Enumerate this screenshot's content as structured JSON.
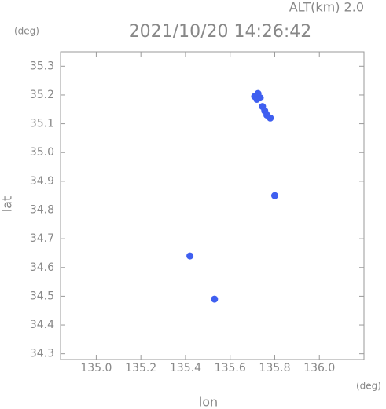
{
  "chart_data": {
    "type": "scatter",
    "title": "2021/10/20 14:26:42",
    "subtitle": "ALT(km) 2.0",
    "x_unit": "(deg)",
    "y_unit": "(deg)",
    "x_label": "lon",
    "y_label": "lat",
    "series": [
      {
        "color": "#3f5ff0",
        "x": [
          135.71,
          135.725,
          135.735,
          135.72,
          135.745,
          135.755,
          135.765,
          135.78,
          135.8,
          135.42,
          135.53
        ],
        "values": [
          35.195,
          35.205,
          35.19,
          35.185,
          35.16,
          35.145,
          35.13,
          35.12,
          34.85,
          34.64,
          34.49
        ]
      }
    ],
    "xlim": [
      134.84,
      136.2
    ],
    "ylim": [
      34.28,
      35.35
    ],
    "xticks": [
      {
        "value": 135.0,
        "label": "135.0"
      },
      135.2,
      135.4,
      135.6,
      135.8,
      {
        "value": 136.0,
        "label": "136.0"
      }
    ],
    "yticks": [
      34.3,
      34.4,
      34.5,
      34.6,
      34.7,
      34.8,
      34.9,
      {
        "value": 35.0,
        "label": "35.0"
      },
      35.1,
      35.2,
      35.3
    ]
  }
}
